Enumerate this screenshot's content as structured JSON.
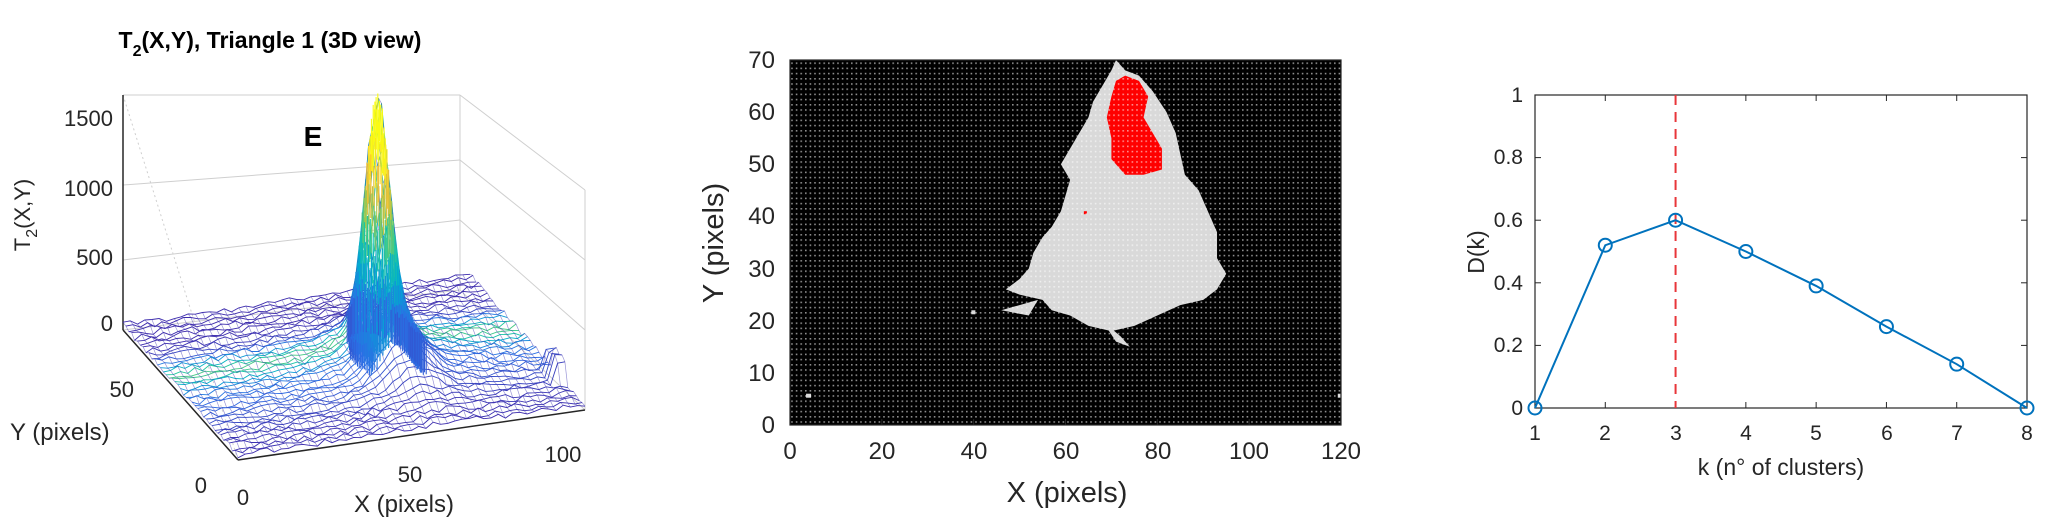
{
  "chart_data": [
    {
      "type": "surface3d",
      "title_main": "T",
      "title_sub": "2",
      "title_rest": "(X,Y), Triangle 1 (3D view)",
      "zlabel_main": "T",
      "zlabel_sub": "2",
      "zlabel_rest": "(X,Y)",
      "ylabel": "Y (pixels)",
      "xlabel": "X (pixels)",
      "z_ticks": [
        "0",
        "500",
        "1000",
        "1500"
      ],
      "y_ticks": [
        "0",
        "50"
      ],
      "x_ticks": [
        "0",
        "50",
        "100"
      ],
      "annotation": "E",
      "zlim": [
        0,
        1600
      ],
      "peak": {
        "x": 72,
        "y": 60,
        "z": 1500
      }
    },
    {
      "type": "heatmap",
      "xlabel": "X (pixels)",
      "ylabel": "Y (pixels)",
      "x_ticks": [
        "0",
        "20",
        "40",
        "60",
        "80",
        "100",
        "120"
      ],
      "y_ticks": [
        "0",
        "10",
        "20",
        "30",
        "40",
        "50",
        "60",
        "70"
      ],
      "xlim": [
        0,
        120
      ],
      "ylim": [
        0,
        70
      ],
      "colors": {
        "background": "#000000",
        "cluster_gray": "#d9d9d9",
        "cluster_red": "#ff0000"
      }
    },
    {
      "type": "line",
      "xlabel": "k (n° of clusters)",
      "ylabel": "D(k)",
      "x": [
        1,
        2,
        3,
        4,
        5,
        6,
        7,
        8
      ],
      "values": [
        0.0,
        0.52,
        0.6,
        0.5,
        0.39,
        0.26,
        0.14,
        0.0
      ],
      "x_ticks": [
        "1",
        "2",
        "3",
        "4",
        "5",
        "6",
        "7",
        "8"
      ],
      "y_ticks": [
        "0",
        "0.2",
        "0.4",
        "0.6",
        "0.8",
        "1"
      ],
      "xlim": [
        1,
        8
      ],
      "ylim": [
        0,
        1
      ],
      "vline_x": 3,
      "colors": {
        "line": "#0072BD",
        "vline": "#e8363a"
      }
    }
  ]
}
